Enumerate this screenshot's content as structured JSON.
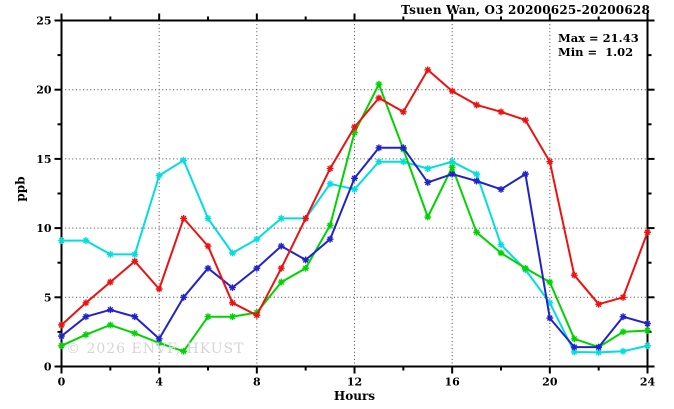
{
  "chart_data": {
    "type": "line",
    "title": "Tsuen Wan, O3 20200625-20200628",
    "xlabel": "Hours",
    "ylabel": "ppb",
    "xlim": [
      0,
      24
    ],
    "ylim": [
      0,
      25
    ],
    "x_major_ticks": [
      0,
      4,
      8,
      12,
      16,
      20,
      24
    ],
    "x_minor_step": 2,
    "y_major_ticks": [
      0,
      5,
      10,
      15,
      20,
      25
    ],
    "y_minor_step": 2.5,
    "grid": "dotted-at-major-ticks",
    "legend_position": "none",
    "x": [
      0,
      1,
      2,
      3,
      4,
      5,
      6,
      7,
      8,
      9,
      10,
      11,
      12,
      13,
      14,
      15,
      16,
      17,
      18,
      19,
      20,
      21,
      22,
      23,
      24
    ],
    "series": [
      {
        "name": "cyan",
        "color": "#00dede",
        "values": [
          9.1,
          9.1,
          8.1,
          8.1,
          13.8,
          14.9,
          10.7,
          8.2,
          9.2,
          10.7,
          10.7,
          13.2,
          12.8,
          14.8,
          14.8,
          14.3,
          14.8,
          13.9,
          8.8,
          7.0,
          4.6,
          1.05,
          1.02,
          1.1,
          1.5
        ]
      },
      {
        "name": "green",
        "color": "#00d400",
        "values": [
          1.5,
          2.3,
          3.0,
          2.4,
          1.7,
          1.1,
          3.6,
          3.6,
          3.9,
          6.1,
          7.1,
          10.2,
          16.9,
          20.4,
          15.7,
          10.8,
          14.4,
          9.7,
          8.2,
          7.1,
          6.1,
          2.0,
          1.4,
          2.5,
          2.6
        ]
      },
      {
        "name": "blue",
        "color": "#2222cc",
        "values": [
          2.2,
          3.6,
          4.1,
          3.6,
          2.0,
          5.0,
          7.1,
          5.7,
          7.1,
          8.7,
          7.7,
          9.2,
          13.6,
          15.8,
          15.8,
          13.3,
          13.9,
          13.4,
          12.8,
          13.9,
          3.5,
          1.4,
          1.4,
          3.6,
          3.1
        ]
      },
      {
        "name": "red",
        "color": "#ee1111",
        "values": [
          3.0,
          4.6,
          6.1,
          7.6,
          5.6,
          10.7,
          8.7,
          4.6,
          3.7,
          7.1,
          10.7,
          14.3,
          17.3,
          19.4,
          18.4,
          21.43,
          19.9,
          18.9,
          18.4,
          17.8,
          14.8,
          6.6,
          4.5,
          5.0,
          9.7
        ]
      }
    ],
    "annotations": {
      "max_label": "Max = 21.43",
      "min_label": "Min =  1.02"
    },
    "watermark": "© 2026 ENVF, HKUST"
  }
}
